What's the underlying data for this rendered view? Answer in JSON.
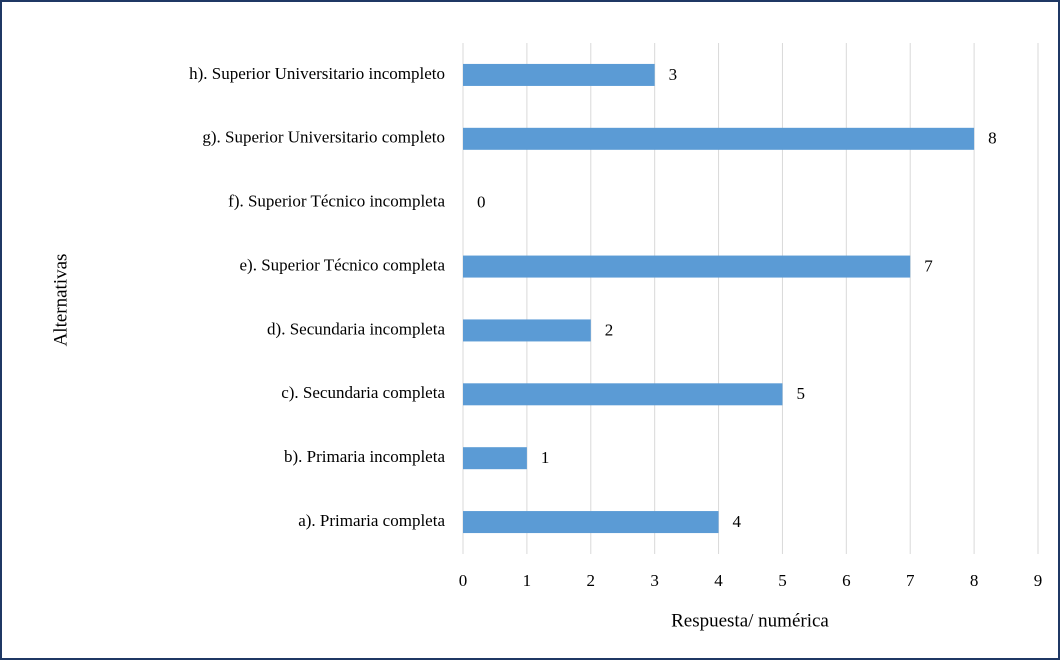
{
  "chart_data": {
    "type": "bar",
    "orientation": "horizontal",
    "categories": [
      "a). Primaria completa",
      "b). Primaria incompleta",
      "c). Secundaria completa",
      "d). Secundaria incompleta",
      "e). Superior Técnico completa",
      "f). Superior Técnico incompleta",
      "g). Superior Universitario completo",
      "h). Superior Universitario incompleto"
    ],
    "values": [
      4,
      1,
      5,
      2,
      7,
      0,
      8,
      3
    ],
    "color": "#5b9bd5",
    "xlim": [
      0,
      9
    ],
    "xticks": [
      0,
      1,
      2,
      3,
      4,
      5,
      6,
      7,
      8,
      9
    ],
    "xlabel": "Respuesta/ numérica",
    "ylabel": "Alternativas",
    "grid": true
  }
}
